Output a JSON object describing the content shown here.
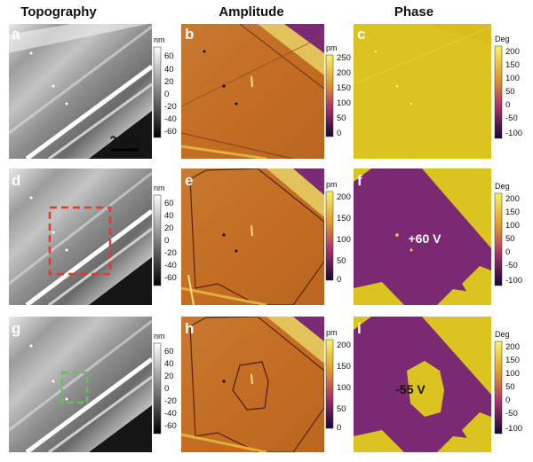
{
  "columns": [
    "Topography",
    "Amplitude",
    "Phase"
  ],
  "panel_labels": [
    "a",
    "b",
    "c",
    "d",
    "e",
    "f",
    "g",
    "h",
    "i"
  ],
  "colorbars": {
    "topography": {
      "unit": "nm",
      "ticks": [
        "60",
        "40",
        "20",
        "0",
        "-20",
        "-40",
        "-60"
      ]
    },
    "amplitude_row1": {
      "unit": "pm",
      "ticks": [
        "250",
        "200",
        "150",
        "100",
        "50",
        "0"
      ]
    },
    "amplitude": {
      "unit": "pm",
      "ticks": [
        "200",
        "150",
        "100",
        "50",
        "0"
      ]
    },
    "phase": {
      "unit": "Deg",
      "ticks": [
        "200",
        "150",
        "100",
        "50",
        "0",
        "-50",
        "-100"
      ]
    }
  },
  "scale_bar": "2 μm",
  "annotations": {
    "f": "+60 V",
    "i": "-55 V"
  },
  "colors": {
    "box_red": "#e23b2e",
    "box_green": "#5fc35a",
    "amplitude_base": "#c8742a",
    "phase_yellow": "#dcc420",
    "phase_purple": "#7a2a72"
  }
}
